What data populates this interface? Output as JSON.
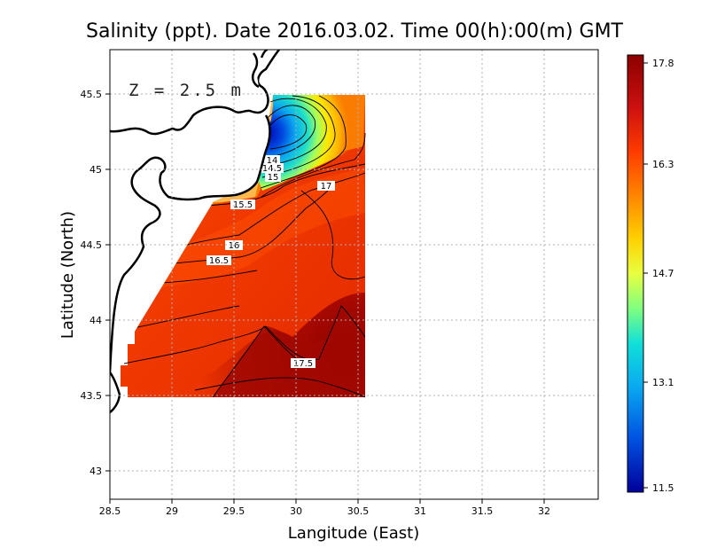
{
  "title": "Salinity (ppt). Date 2016.03.02. Time 00(h):00(m) GMT",
  "xlabel": "Langitude (East)",
  "ylabel": "Latitude (North)",
  "depth_label": "Z = 2.5 m",
  "colorbar": {
    "min": 11.5,
    "max": 17.8,
    "tick_labels": [
      "17.8",
      "16.3",
      "14.7",
      "13.1",
      "11.5"
    ],
    "colors": [
      "#8b0000",
      "#d41010",
      "#ff3c00",
      "#ff8a00",
      "#ffd400",
      "#e8ff3a",
      "#7dff7a",
      "#10d8d8",
      "#0aa0f0",
      "#0050e0",
      "#0000a0"
    ]
  },
  "chart_data": {
    "type": "heatmap",
    "variable": "Salinity",
    "unit": "ppt",
    "x_ticks": [
      "28.5",
      "29",
      "29.5",
      "30",
      "30.5",
      "31",
      "31.5",
      "32"
    ],
    "y_ticks": [
      "45.5",
      "45",
      "44.5",
      "44",
      "43.5",
      "43"
    ],
    "xlim": [
      28.5,
      32.4
    ],
    "ylim": [
      42.8,
      45.8
    ],
    "grid": true,
    "contour_levels": [
      "14",
      "14.5",
      "15",
      "15.5",
      "16",
      "16.5",
      "17",
      "17.5"
    ],
    "contour_label_values": [
      14,
      14.5,
      15,
      15.5,
      16,
      16.5,
      17,
      17.5
    ],
    "value_range": [
      11.5,
      17.8
    ]
  }
}
